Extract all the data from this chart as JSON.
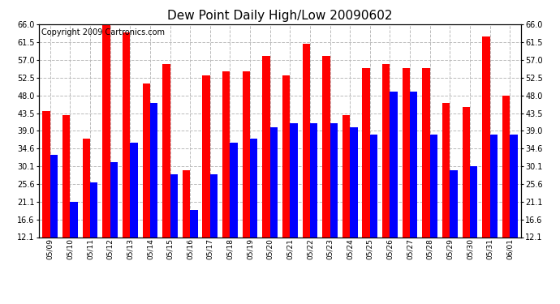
{
  "title": "Dew Point Daily High/Low 20090602",
  "copyright": "Copyright 2009 Cartronics.com",
  "labels": [
    "05/09",
    "05/10",
    "05/11",
    "05/12",
    "05/13",
    "05/14",
    "05/15",
    "05/16",
    "05/17",
    "05/18",
    "05/19",
    "05/20",
    "05/21",
    "05/22",
    "05/23",
    "05/24",
    "05/25",
    "05/26",
    "05/27",
    "05/28",
    "05/29",
    "05/30",
    "05/31",
    "06/01"
  ],
  "highs": [
    44,
    43,
    37,
    66,
    64,
    51,
    56,
    29,
    53,
    54,
    54,
    58,
    53,
    61,
    58,
    43,
    55,
    56,
    55,
    55,
    46,
    45,
    63,
    48
  ],
  "lows": [
    33,
    21,
    26,
    31,
    36,
    46,
    28,
    19,
    28,
    36,
    37,
    40,
    41,
    41,
    41,
    40,
    38,
    49,
    49,
    38,
    29,
    30,
    38,
    38
  ],
  "high_color": "#ff0000",
  "low_color": "#0000ff",
  "bg_color": "#ffffff",
  "grid_color": "#bbbbbb",
  "ymin": 12.1,
  "ymax": 66.0,
  "yticks": [
    12.1,
    16.6,
    21.1,
    25.6,
    30.1,
    34.6,
    39.0,
    43.5,
    48.0,
    52.5,
    57.0,
    61.5,
    66.0
  ],
  "title_fontsize": 11,
  "copyright_fontsize": 7,
  "bar_width": 0.38
}
